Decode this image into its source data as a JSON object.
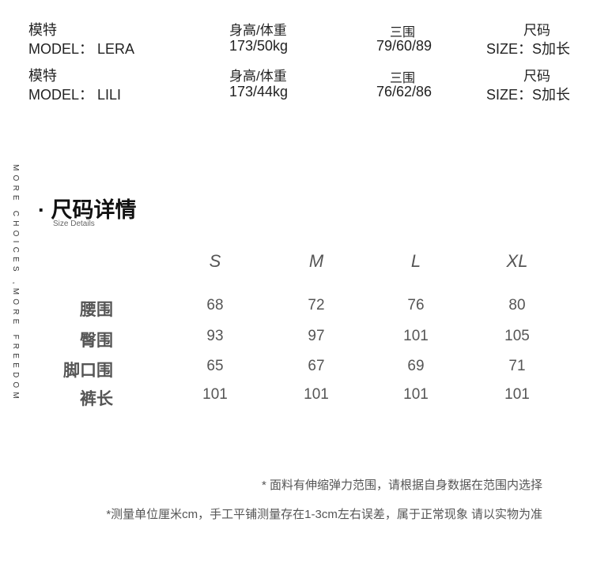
{
  "models": [
    {
      "model_label": "模特",
      "name": "MODEL： LERA",
      "hw_label": "身高/体重",
      "hw": "173/50kg",
      "bust_label": "三围",
      "bust": "79/60/89",
      "size_label": "尺码",
      "size": "SIZE：S加长"
    },
    {
      "model_label": "模特",
      "name": "MODEL： LILI",
      "hw_label": "身高/体重",
      "hw": "173/44kg",
      "bust_label": "三围",
      "bust": "76/62/86",
      "size_label": "尺码",
      "size": "SIZE：S加长"
    }
  ],
  "side_text": "MORE CHOICES ,MORE FREEDOM",
  "section": {
    "title": "· 尺码详情",
    "subtitle": "Size Details"
  },
  "table": {
    "columns": [
      "S",
      "M",
      "L",
      "XL"
    ],
    "rows": [
      {
        "label": "腰围",
        "values": [
          "68",
          "72",
          "76",
          "80"
        ]
      },
      {
        "label": "臀围",
        "values": [
          "93",
          "97",
          "101",
          "105"
        ]
      },
      {
        "label": "脚口围",
        "values": [
          "65",
          "67",
          "69",
          "71"
        ]
      },
      {
        "label": "裤长",
        "values": [
          "101",
          "101",
          "101",
          "101"
        ]
      }
    ]
  },
  "notes": [
    "* 面料有伸缩弹力范围，请根据自身数据在范围内选择",
    "*测量单位厘米cm，手工平铺测量存在1-3cm左右误差，属于正常现象 请以实物为准"
  ]
}
